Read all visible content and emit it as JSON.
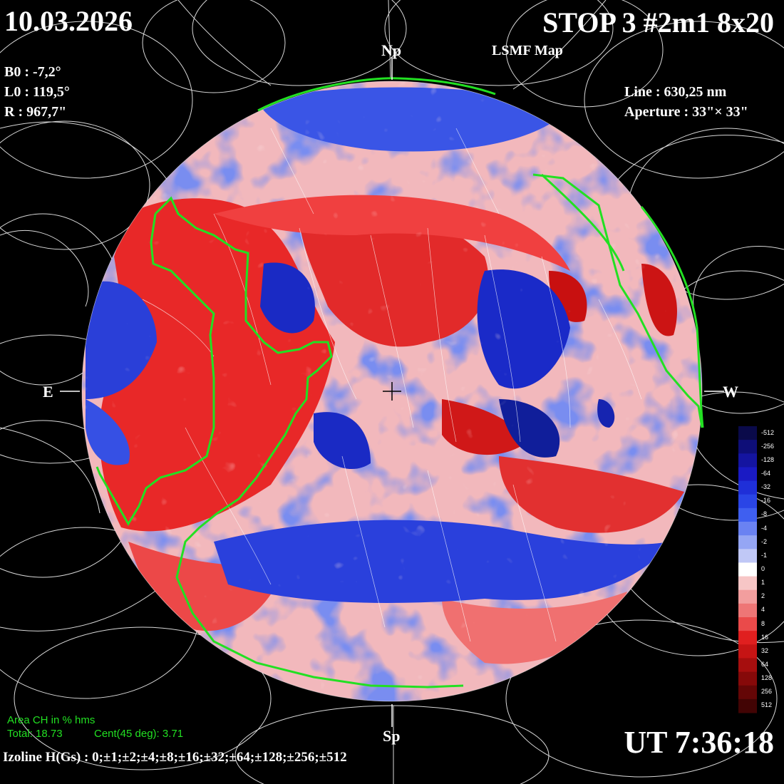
{
  "header": {
    "date": "10.03.2026",
    "title": "STOP 3 #2m1 8x20",
    "subtitle": "LSMF  Map"
  },
  "parameters": {
    "b0": "B0 : -7,2°",
    "l0": "L0 : 119,5°",
    "r": "R  : 967,7\""
  },
  "instrument": {
    "line": "Line :  630,25 nm",
    "aperture": "Aperture : 33\"× 33\""
  },
  "poles": {
    "north": "Np",
    "south": "Sp",
    "east": "E",
    "west": "W"
  },
  "coronal_hole_area": {
    "heading": "Area CH in % hms",
    "total": "Total: 18.73",
    "central": "Cent(45 deg): 3.71"
  },
  "time": "UT 7:36:18",
  "izoline": "Izoline H(Gs) : 0;±1;±2;±4;±8;±16;±32;±64;±128;±256;±512",
  "color_scale": {
    "labels": [
      "-512",
      "-256",
      "-128",
      "-64",
      "-32",
      "-16",
      "-8",
      "-4",
      "-2",
      "-1",
      "0",
      "1",
      "2",
      "4",
      "8",
      "16",
      "32",
      "64",
      "128",
      "256",
      "512"
    ],
    "colors": [
      "#0a0a4a",
      "#0e0e78",
      "#1414a0",
      "#1a1ac4",
      "#1f2fd8",
      "#2a45e6",
      "#3f5ff0",
      "#6a82f2",
      "#95a6f4",
      "#c0c8f6",
      "#ffffff",
      "#f7c6c6",
      "#f29e9e",
      "#ee7676",
      "#ea4a4a",
      "#e01f1f",
      "#c61414",
      "#a60e0e",
      "#860909",
      "#640606",
      "#420404"
    ]
  }
}
